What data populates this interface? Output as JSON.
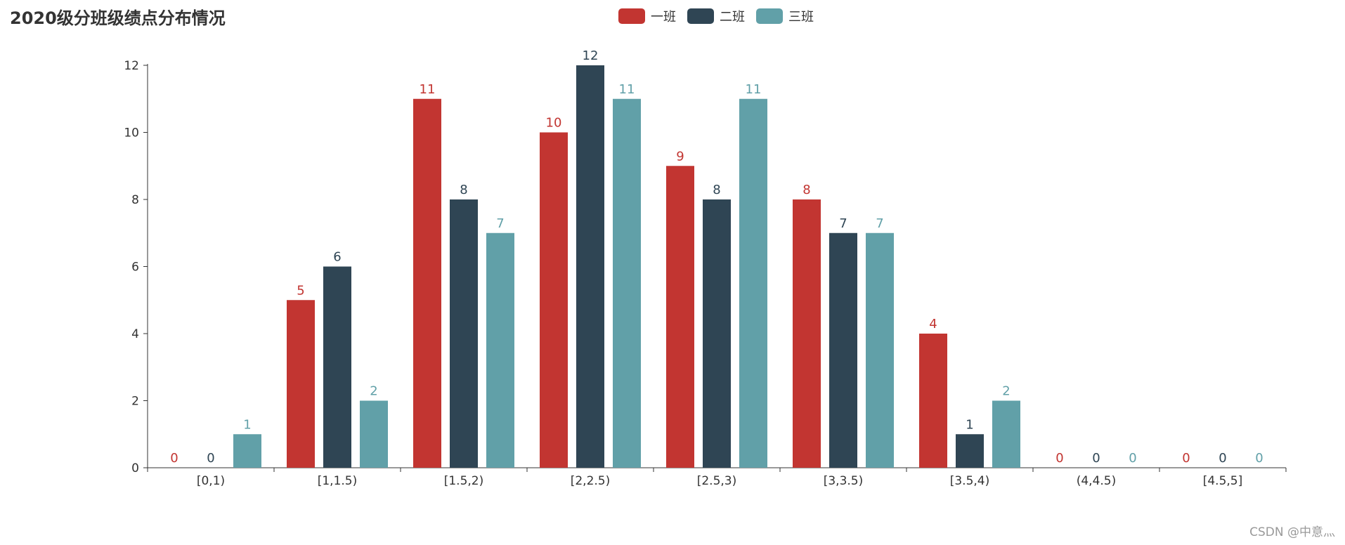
{
  "chart_data": {
    "type": "bar",
    "title": "2020级分班级绩点分布情况",
    "categories": [
      "[0,1)",
      "[1,1.5)",
      "[1.5,2)",
      "[2,2.5)",
      "[2.5,3)",
      "[3,3.5)",
      "[3.5,4)",
      "(4,4.5)",
      "[4.5,5]"
    ],
    "series": [
      {
        "name": "一班",
        "color": "#c23531",
        "values": [
          0,
          5,
          11,
          10,
          9,
          8,
          4,
          0,
          0
        ]
      },
      {
        "name": "二班",
        "color": "#2f4554",
        "values": [
          0,
          6,
          8,
          12,
          8,
          7,
          1,
          0,
          0
        ]
      },
      {
        "name": "三班",
        "color": "#61a0a8",
        "values": [
          1,
          2,
          7,
          11,
          11,
          7,
          2,
          0,
          0
        ]
      }
    ],
    "ylim": [
      0,
      12
    ],
    "yticks": [
      0,
      2,
      4,
      6,
      8,
      10,
      12
    ],
    "legend_position": "top-center",
    "grid": false,
    "data_labels": true
  },
  "watermark": "CSDN @中意灬"
}
